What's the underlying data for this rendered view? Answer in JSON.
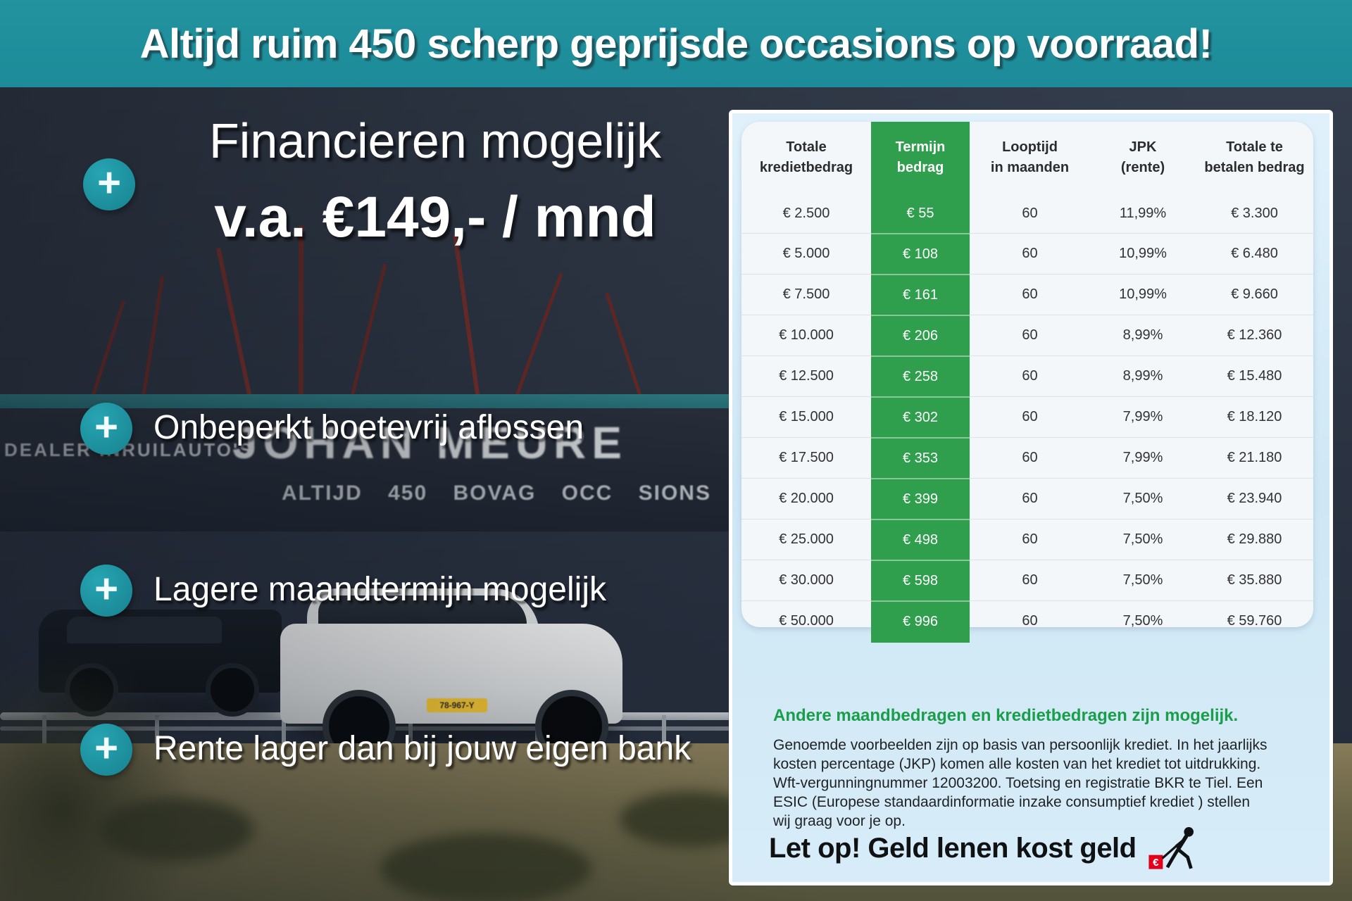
{
  "banner": {
    "text": "Altijd ruim 450 scherp geprijsde occasions op voorraad!"
  },
  "promo": {
    "plus_symbol": "+",
    "headline_line1": "Financieren mogelijk",
    "headline_line2": "v.a. €149,- / mnd",
    "bullets": [
      "Onbeperkt boetevrij aflossen",
      "Lagere maandtermijn mogelijk",
      "Rente lager dan bij jouw eigen bank"
    ]
  },
  "background_photo": {
    "sign_main": "JOHAN MEURE",
    "sign_left": "DEALER INRUILAUTO'S",
    "sign_sub": "ALTIJD 450 BOVAG OCC SIONS",
    "license_plate": "78-967-Y"
  },
  "finance_panel": {
    "table": {
      "headers": [
        {
          "line1": "Totale",
          "line2": "kredietbedrag"
        },
        {
          "line1": "Termijn",
          "line2": "bedrag"
        },
        {
          "line1": "Looptijd",
          "line2": "in maanden"
        },
        {
          "line1": "JPK",
          "line2": "(rente)"
        },
        {
          "line1": "Totale te",
          "line2": "betalen bedrag"
        }
      ],
      "rows": [
        [
          "€ 2.500",
          "€ 55",
          "60",
          "11,99%",
          "€ 3.300"
        ],
        [
          "€ 5.000",
          "€ 108",
          "60",
          "10,99%",
          "€ 6.480"
        ],
        [
          "€ 7.500",
          "€ 161",
          "60",
          "10,99%",
          "€ 9.660"
        ],
        [
          "€ 10.000",
          "€ 206",
          "60",
          "8,99%",
          "€ 12.360"
        ],
        [
          "€ 12.500",
          "€ 258",
          "60",
          "8,99%",
          "€ 15.480"
        ],
        [
          "€ 15.000",
          "€ 302",
          "60",
          "7,99%",
          "€ 18.120"
        ],
        [
          "€ 17.500",
          "€ 353",
          "60",
          "7,99%",
          "€ 21.180"
        ],
        [
          "€ 20.000",
          "€ 399",
          "60",
          "7,50%",
          "€ 23.940"
        ],
        [
          "€ 25.000",
          "€ 498",
          "60",
          "7,50%",
          "€ 29.880"
        ],
        [
          "€ 30.000",
          "€ 598",
          "60",
          "7,50%",
          "€ 35.880"
        ],
        [
          "€ 50.000",
          "€ 996",
          "60",
          "7,50%",
          "€ 59.760"
        ]
      ]
    },
    "note_heading": "Andere maandbedragen en kredietbedragen zijn mogelijk.",
    "disclaimer": "Genoemde voorbeelden zijn op basis van persoonlijk krediet. In het jaarlijks kosten percentage (JKP) komen alle kosten van het krediet tot uitdrukking. Wft-vergunningnummer 12003200. Toetsing en registratie BKR te Tiel. Een ESIC (Europese standaardinformatie inzake consumptief krediet ) stellen wij graag voor je op.",
    "warning": "Let op! Geld lenen kost geld",
    "colors": {
      "accent_teal": "#1d8b99",
      "table_green": "#2f9e4d",
      "note_green": "#1a9e4b",
      "warning_red": "#e2001a"
    }
  }
}
